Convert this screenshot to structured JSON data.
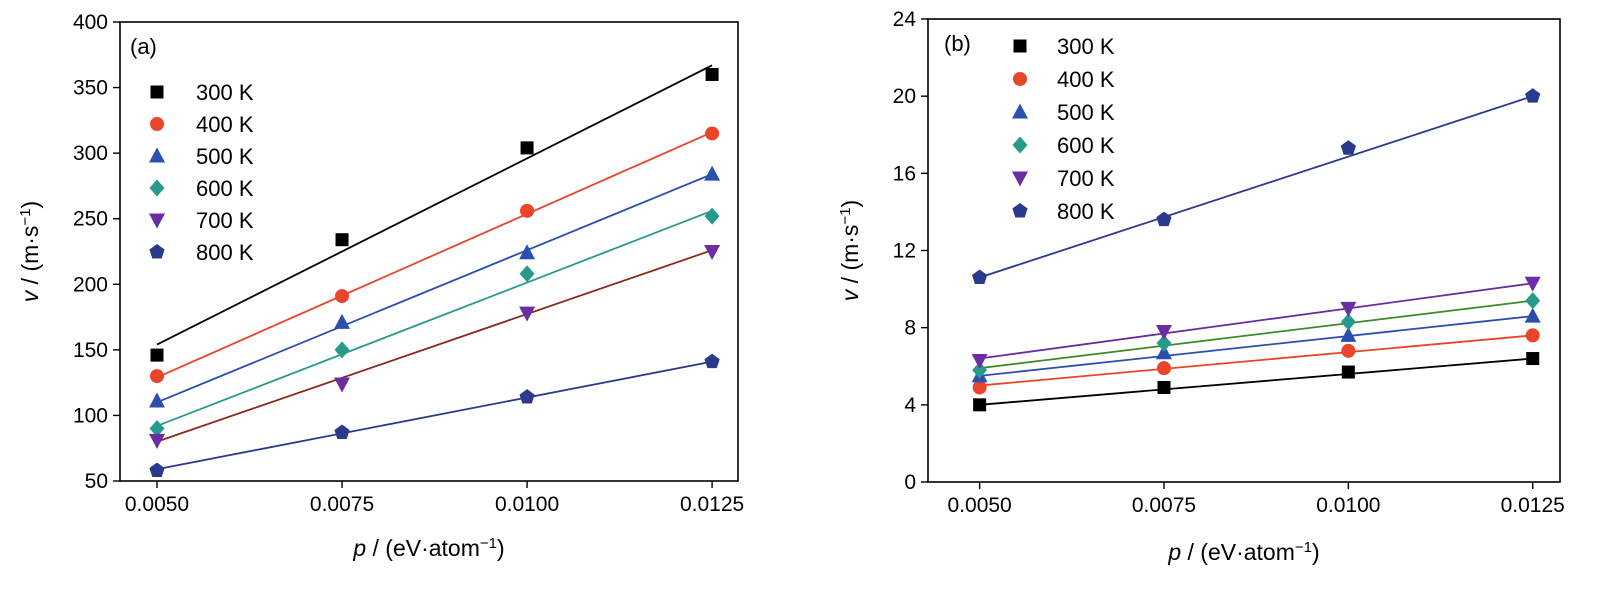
{
  "chart_data": [
    {
      "type": "scatter",
      "panel_label": "(a)",
      "xlabel_var": "p",
      "xlabel_unit": " / (eV·atom",
      "xlabel_sup": "−1",
      "xlabel_close": ")",
      "ylabel_var": "v",
      "ylabel_unit": " / (m·s",
      "ylabel_sup": "−1",
      "ylabel_close": ")",
      "xlim": [
        0.0045,
        0.01285
      ],
      "ylim": [
        50,
        400
      ],
      "xticks": [
        "0.0050",
        "0.0075",
        "0.0100",
        "0.0125"
      ],
      "xtick_values": [
        0.005,
        0.0075,
        0.01,
        0.0125
      ],
      "yticks": [
        "50",
        "100",
        "150",
        "200",
        "250",
        "300",
        "350",
        "400"
      ],
      "ytick_values": [
        50,
        100,
        150,
        200,
        250,
        300,
        350,
        400
      ],
      "legend_position": "upper-left",
      "x": [
        0.005,
        0.0075,
        0.01,
        0.0125
      ],
      "series": [
        {
          "name": "300 K",
          "values": [
            146,
            234,
            304,
            360
          ],
          "fit": [
            154,
            224,
            296,
            367
          ],
          "marker": "square",
          "color": "#000000",
          "line_color": "#000000"
        },
        {
          "name": "400 K",
          "values": [
            130,
            191,
            256,
            315
          ],
          "fit": [
            129,
            191,
            254,
            316
          ],
          "marker": "circle",
          "color": "#e8452a",
          "line_color": "#e8452a"
        },
        {
          "name": "500 K",
          "values": [
            111,
            171,
            224,
            284
          ],
          "fit": [
            110,
            168,
            226,
            284
          ],
          "marker": "triangle-up",
          "color": "#2b4fb0",
          "line_color": "#2b4fb0"
        },
        {
          "name": "600 K",
          "values": [
            90,
            150,
            208,
            252
          ],
          "fit": [
            92,
            146,
            201,
            256
          ],
          "marker": "diamond",
          "color": "#279a8c",
          "line_color": "#279a8c"
        },
        {
          "name": "700 K",
          "values": [
            81,
            124,
            178,
            225
          ],
          "fit": [
            80,
            129,
            177,
            226
          ],
          "marker": "triangle-down",
          "color": "#6a2da3",
          "line_color": "#8b2a1a"
        },
        {
          "name": "800 K",
          "values": [
            58,
            87,
            114,
            141
          ],
          "fit": [
            59,
            86,
            114,
            141
          ],
          "marker": "pentagon",
          "color": "#2b3a8c",
          "line_color": "#2b3a8c"
        }
      ]
    },
    {
      "type": "scatter",
      "panel_label": "(b)",
      "xlabel_var": "p",
      "xlabel_unit": " / (eV·atom",
      "xlabel_sup": "−1",
      "xlabel_close": ")",
      "ylabel_var": "v",
      "ylabel_unit": " / (m·s",
      "ylabel_sup": "−1",
      "ylabel_close": ")",
      "xlim": [
        0.0043,
        0.01287
      ],
      "ylim": [
        0,
        24
      ],
      "xticks": [
        "0.0050",
        "0.0075",
        "0.0100",
        "0.0125"
      ],
      "xtick_values": [
        0.005,
        0.0075,
        0.01,
        0.0125
      ],
      "yticks": [
        "0",
        "4",
        "8",
        "12",
        "16",
        "20",
        "24"
      ],
      "ytick_values": [
        0,
        4,
        8,
        12,
        16,
        20,
        24
      ],
      "legend_position": "upper-left",
      "x": [
        0.005,
        0.0075,
        0.01,
        0.0125
      ],
      "series": [
        {
          "name": "300 K",
          "values": [
            4.0,
            4.9,
            5.7,
            6.4
          ],
          "fit": [
            4.0,
            4.8,
            5.6,
            6.4
          ],
          "marker": "square",
          "color": "#000000",
          "line_color": "#000000"
        },
        {
          "name": "400 K",
          "values": [
            4.9,
            5.9,
            6.8,
            7.6
          ],
          "fit": [
            5.0,
            5.9,
            6.7,
            7.6
          ],
          "marker": "circle",
          "color": "#e8452a",
          "line_color": "#e8452a"
        },
        {
          "name": "500 K",
          "values": [
            5.5,
            6.7,
            7.6,
            8.6
          ],
          "fit": [
            5.5,
            6.5,
            7.6,
            8.6
          ],
          "marker": "triangle-up",
          "color": "#2b4fb0",
          "line_color": "#2b4fb0"
        },
        {
          "name": "600 K",
          "values": [
            5.8,
            7.2,
            8.3,
            9.4
          ],
          "fit": [
            5.9,
            7.1,
            8.2,
            9.4
          ],
          "marker": "diamond",
          "color": "#279a8c",
          "line_color": "#3a8a2a"
        },
        {
          "name": "700 K",
          "values": [
            6.3,
            7.8,
            9.0,
            10.3
          ],
          "fit": [
            6.4,
            7.7,
            9.0,
            10.3
          ],
          "marker": "triangle-down",
          "color": "#6a2da3",
          "line_color": "#6a2da3"
        },
        {
          "name": "800 K",
          "values": [
            10.6,
            13.6,
            17.3,
            20.0
          ],
          "fit": [
            10.6,
            13.7,
            16.9,
            20.0
          ],
          "marker": "pentagon",
          "color": "#2b3a8c",
          "line_color": "#2b3a8c"
        }
      ]
    }
  ]
}
